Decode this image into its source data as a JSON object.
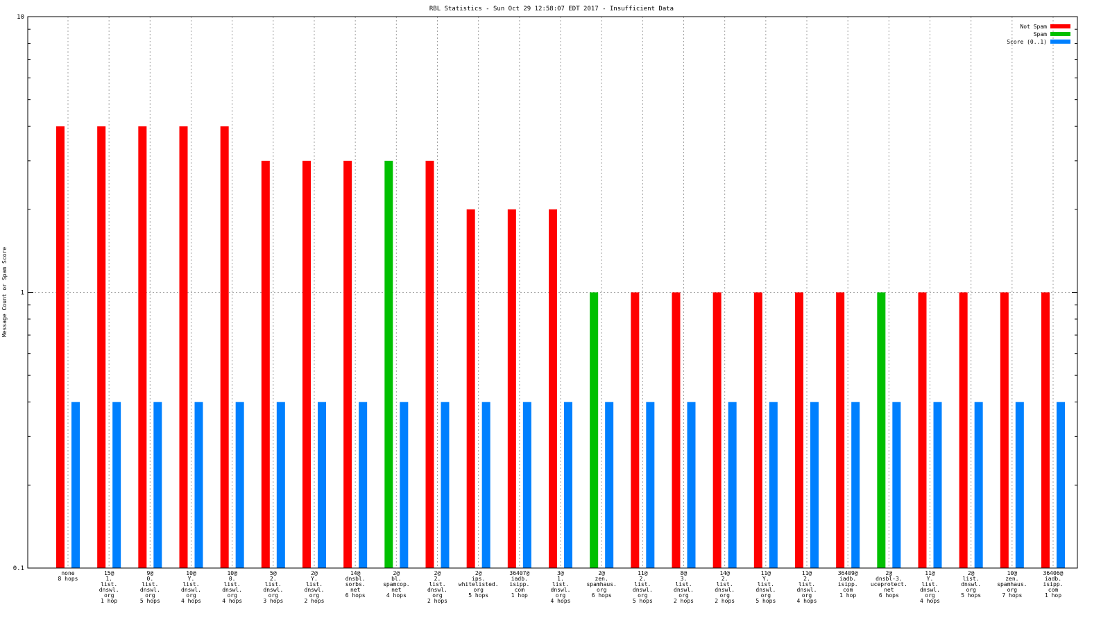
{
  "chart_data": {
    "type": "bar",
    "title": "RBL Statistics - Sun Oct 29 12:58:07 EDT 2017 - Insufficient Data",
    "xlabel": "",
    "ylabel": "Message Count or Spam Score",
    "yscale": "log",
    "ylim": [
      0.1,
      10
    ],
    "y_ticks": [
      "0.1",
      "1",
      "10"
    ],
    "grid": true,
    "legend_position": "top-right",
    "categories": [
      [
        "none",
        "8 hops"
      ],
      [
        "15@",
        "1.",
        "list.",
        "dnswl.",
        "org",
        "1 hop"
      ],
      [
        "9@",
        "0.",
        "list.",
        "dnswl.",
        "org",
        "5 hops"
      ],
      [
        "10@",
        "Y.",
        "list.",
        "dnswl.",
        "org",
        "4 hops"
      ],
      [
        "10@",
        "0.",
        "list.",
        "dnswl.",
        "org",
        "4 hops"
      ],
      [
        "5@",
        "2.",
        "list.",
        "dnswl.",
        "org",
        "3 hops"
      ],
      [
        "2@",
        "Y.",
        "list.",
        "dnswl.",
        "org",
        "2 hops"
      ],
      [
        "14@",
        "dnsbl.",
        "sorbs.",
        "net",
        "6 hops"
      ],
      [
        "2@",
        "bl.",
        "spamcop.",
        "net",
        "4 hops"
      ],
      [
        "2@",
        "2.",
        "list.",
        "dnswl.",
        "org",
        "2 hops"
      ],
      [
        "2@",
        "ips.",
        "whitelisted.",
        "org",
        "5 hops"
      ],
      [
        "36407@",
        "iadb.",
        "isipp.",
        "com",
        "1 hop"
      ],
      [
        "3@",
        "1.",
        "list.",
        "dnswl.",
        "org",
        "4 hops"
      ],
      [
        "2@",
        "zen.",
        "spamhaus.",
        "org",
        "6 hops"
      ],
      [
        "11@",
        "2.",
        "list.",
        "dnswl.",
        "org",
        "5 hops"
      ],
      [
        "8@",
        "3.",
        "list.",
        "dnswl.",
        "org",
        "2 hops"
      ],
      [
        "14@",
        "2.",
        "list.",
        "dnswl.",
        "org",
        "2 hops"
      ],
      [
        "11@",
        "Y.",
        "list.",
        "dnswl.",
        "org",
        "5 hops"
      ],
      [
        "11@",
        "2.",
        "list.",
        "dnswl.",
        "org",
        "4 hops"
      ],
      [
        "36409@",
        "iadb.",
        "isipp.",
        "com",
        "1 hop"
      ],
      [
        "2@",
        "dnsbl-3.",
        "uceprotect.",
        "net",
        "6 hops"
      ],
      [
        "11@",
        "Y.",
        "list.",
        "dnswl.",
        "org",
        "4 hops"
      ],
      [
        "2@",
        "list.",
        "dnswl.",
        "org",
        "5 hops"
      ],
      [
        "10@",
        "zen.",
        "spamhaus.",
        "org",
        "7 hops"
      ],
      [
        "36406@",
        "iadb.",
        "isipp.",
        "com",
        "1 hop"
      ]
    ],
    "series": [
      {
        "name": "Not Spam",
        "color": "#ff0000",
        "values": [
          4,
          4,
          4,
          4,
          4,
          3,
          3,
          3,
          null,
          3,
          2,
          2,
          2,
          null,
          1,
          1,
          1,
          1,
          1,
          1,
          null,
          1,
          1,
          1,
          1
        ]
      },
      {
        "name": "Spam",
        "color": "#00c000",
        "values": [
          null,
          null,
          null,
          null,
          null,
          null,
          null,
          null,
          3,
          null,
          null,
          null,
          null,
          1,
          null,
          null,
          null,
          null,
          null,
          null,
          1,
          null,
          null,
          null,
          null
        ]
      },
      {
        "name": "Score (0..1)",
        "color": "#0080ff",
        "values": [
          0.4,
          0.4,
          0.4,
          0.4,
          0.4,
          0.4,
          0.4,
          0.4,
          0.4,
          0.4,
          0.4,
          0.4,
          0.4,
          0.4,
          0.4,
          0.4,
          0.4,
          0.4,
          0.4,
          0.4,
          0.4,
          0.4,
          0.4,
          0.4,
          0.4
        ]
      }
    ]
  }
}
